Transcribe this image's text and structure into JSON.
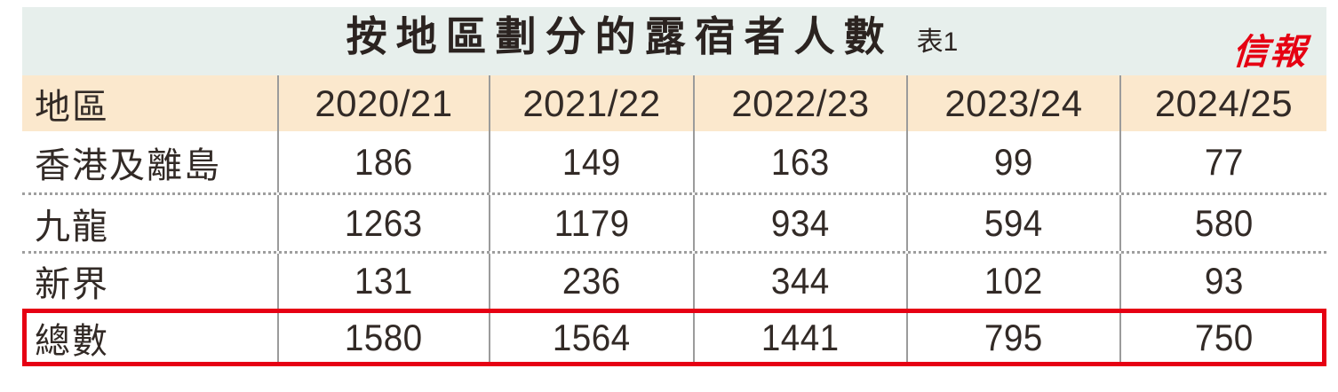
{
  "header": {
    "title": "按地區劃分的露宿者人數",
    "table_label": "表1",
    "logo": "信報"
  },
  "colors": {
    "title_band_background": "#e7efec",
    "header_row_background": "#fbe8cd",
    "column_divider": "#9b9b9b",
    "dotted_separator": "#9e9e9e",
    "highlight_border": "#e60013",
    "logo_red": "#e60012",
    "text": "#2d2521"
  },
  "table": {
    "columns": [
      "地區",
      "2020/21",
      "2021/22",
      "2022/23",
      "2023/24",
      "2024/25"
    ],
    "rows": [
      {
        "region": "香港及離島",
        "values": [
          "186",
          "149",
          "163",
          "99",
          "77"
        ]
      },
      {
        "region": "九龍",
        "values": [
          "1263",
          "1179",
          "934",
          "594",
          "580"
        ]
      },
      {
        "region": "新界",
        "values": [
          "131",
          "236",
          "344",
          "102",
          "93"
        ]
      },
      {
        "region": "總數",
        "values": [
          "1580",
          "1564",
          "1441",
          "795",
          "750"
        ]
      }
    ],
    "highlighted_row": "總數"
  },
  "chart_data": {
    "type": "table",
    "title": "按地區劃分的露宿者人數",
    "table_number": "表1",
    "source_logo": "信報",
    "categories": [
      "2020/21",
      "2021/22",
      "2022/23",
      "2023/24",
      "2024/25"
    ],
    "series": [
      {
        "name": "香港及離島",
        "values": [
          186,
          149,
          163,
          99,
          77
        ]
      },
      {
        "name": "九龍",
        "values": [
          1263,
          1179,
          934,
          594,
          580
        ]
      },
      {
        "name": "新界",
        "values": [
          131,
          236,
          344,
          102,
          93
        ]
      },
      {
        "name": "總數",
        "values": [
          1580,
          1564,
          1441,
          795,
          750
        ],
        "highlighted": true
      }
    ]
  }
}
